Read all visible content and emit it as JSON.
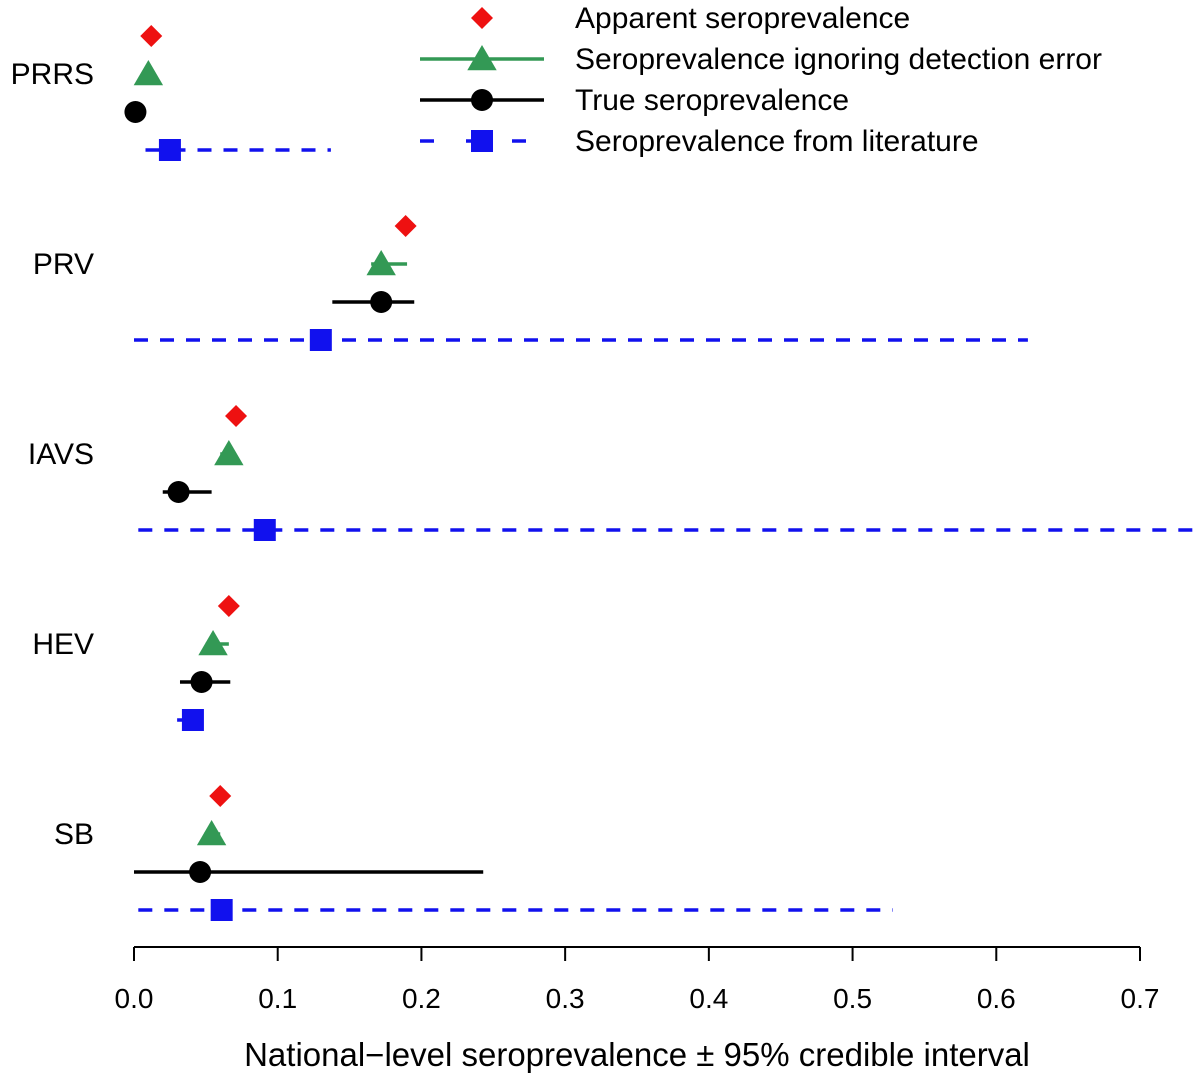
{
  "chart_data": {
    "type": "scatter",
    "subtype": "forest-plot",
    "title": "",
    "xlabel": "National−level seroprevalence ± 95% credible interval",
    "ylabel": "",
    "xlim": [
      0,
      0.7
    ],
    "xticks": [
      0.0,
      0.1,
      0.2,
      0.3,
      0.4,
      0.5,
      0.6,
      0.7
    ],
    "xtick_labels": [
      "0.0",
      "0.1",
      "0.2",
      "0.3",
      "0.4",
      "0.5",
      "0.6",
      "0.7"
    ],
    "grid": false,
    "legend_position": "top-right",
    "categories": [
      "PRRS",
      "PRV",
      "IAVS",
      "HEV",
      "SB"
    ],
    "series": [
      {
        "name": "Apparent seroprevalence",
        "marker": "diamond",
        "color": "#ee1111",
        "line_style": "none",
        "values": [
          0.012,
          0.189,
          0.071,
          0.066,
          0.06
        ],
        "lower": [
          null,
          null,
          null,
          null,
          null
        ],
        "upper": [
          null,
          null,
          null,
          null,
          null
        ]
      },
      {
        "name": "Seroprevalence ignoring detection error",
        "marker": "triangle",
        "color": "#339955",
        "line_style": "solid",
        "values": [
          0.01,
          0.172,
          0.066,
          0.055,
          0.054
        ],
        "lower": [
          0.008,
          0.165,
          0.06,
          0.05,
          0.049
        ],
        "upper": [
          0.012,
          0.19,
          0.07,
          0.066,
          0.06
        ]
      },
      {
        "name": "True seroprevalence",
        "marker": "circle",
        "color": "#000000",
        "line_style": "solid",
        "values": [
          0.001,
          0.172,
          0.031,
          0.047,
          0.046
        ],
        "lower": [
          0.0,
          0.138,
          0.02,
          0.032,
          0.0
        ],
        "upper": [
          0.002,
          0.195,
          0.054,
          0.067,
          0.243
        ]
      },
      {
        "name": "Seroprevalence from literature",
        "marker": "square",
        "color": "#1111ee",
        "line_style": "dashed",
        "values": [
          0.025,
          0.13,
          0.091,
          0.041,
          0.061
        ],
        "lower": [
          0.008,
          0.0,
          0.003,
          0.03,
          0.003
        ],
        "upper": [
          0.137,
          0.622,
          0.74,
          0.048,
          0.528
        ]
      }
    ]
  }
}
